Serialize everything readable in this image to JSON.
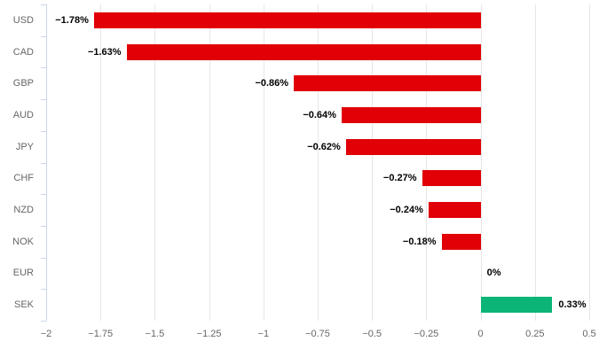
{
  "chart_data": {
    "type": "bar",
    "orientation": "horizontal",
    "title": "",
    "xlabel": "",
    "ylabel": "",
    "categories": [
      "USD",
      "CAD",
      "GBP",
      "AUD",
      "JPY",
      "CHF",
      "NZD",
      "NOK",
      "EUR",
      "SEK"
    ],
    "values": [
      -1.78,
      -1.63,
      -0.86,
      -0.64,
      -0.62,
      -0.27,
      -0.24,
      -0.18,
      0,
      0.33
    ],
    "data_labels": [
      "−1.78%",
      "−1.63%",
      "−0.86%",
      "−0.64%",
      "−0.62%",
      "−0.27%",
      "−0.24%",
      "−0.18%",
      "0%",
      "0.33%"
    ],
    "xlim": [
      -2,
      0.5
    ],
    "x_ticks": [
      -2,
      -1.75,
      -1.5,
      -1.25,
      -1,
      -0.75,
      -0.5,
      -0.25,
      0,
      0.25,
      0.5
    ],
    "x_tick_labels": [
      "−2",
      "−1.75",
      "−1.5",
      "−1.25",
      "−1",
      "−0.75",
      "−0.5",
      "−0.25",
      "0",
      "0.25",
      "0.5"
    ],
    "grid": true,
    "legend": false,
    "colors": {
      "negative_bar": "#e00005",
      "positive_bar": "#0cb577",
      "gridline": "#e6e6e6",
      "axis_line": "#ccd6eb",
      "axis_label_text": "#666666",
      "data_label_text": "#000000",
      "background": "#ffffff"
    }
  }
}
